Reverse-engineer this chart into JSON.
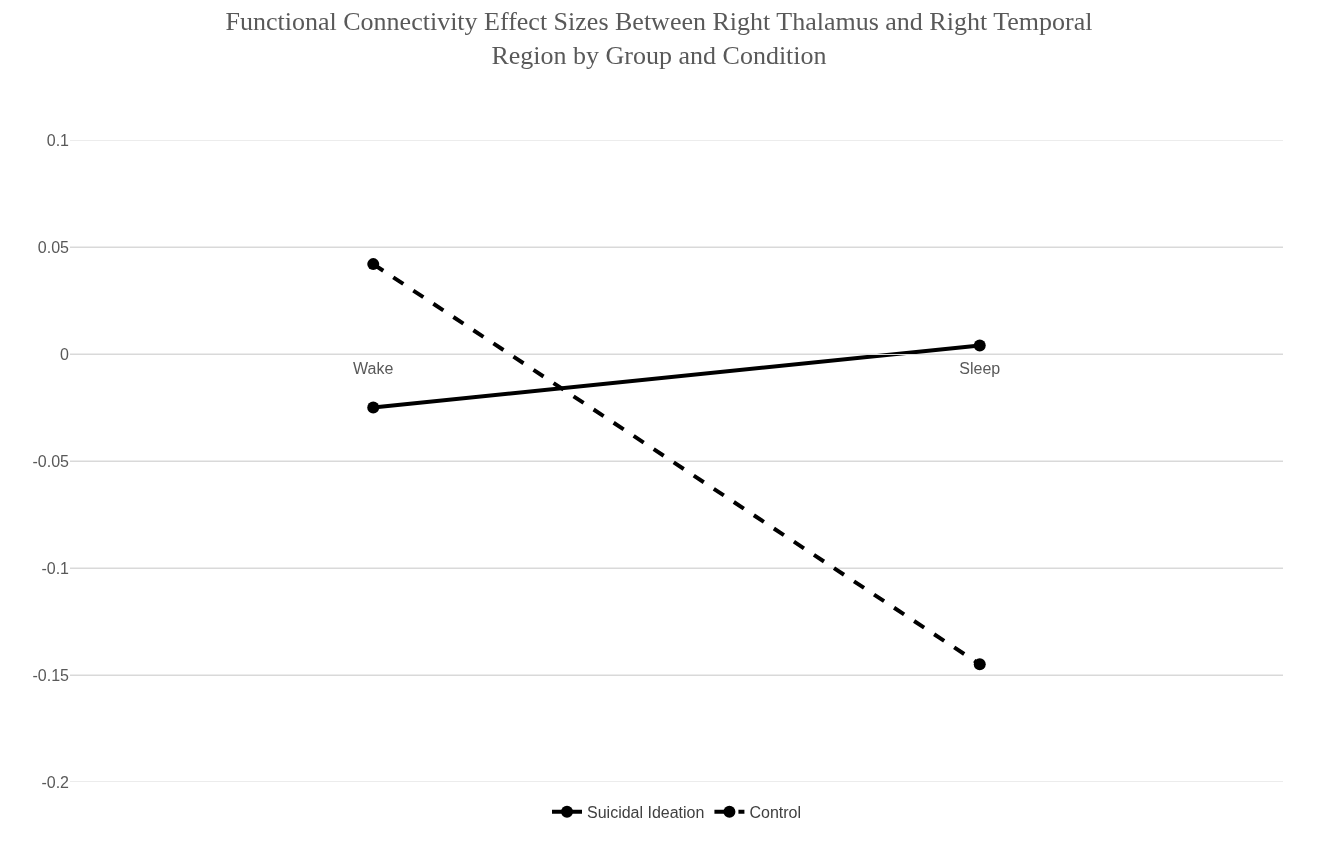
{
  "chart_data": {
    "type": "line",
    "title": "Functional Connectivity Effect Sizes Between Right Thalamus and Right Temporal Region by Group and Condition",
    "categories": [
      "Wake",
      "Sleep"
    ],
    "series": [
      {
        "name": "Suicidal Ideation",
        "color": "#000000",
        "values": [
          -0.025,
          0.004
        ],
        "line_style": "solid"
      },
      {
        "name": "Control",
        "color": "#000000",
        "values": [
          0.042,
          -0.145
        ],
        "line_style": "dashed"
      }
    ],
    "ylim": [
      -0.2,
      0.1
    ],
    "yticks": [
      -0.2,
      -0.15,
      -0.1,
      -0.05,
      0,
      0.05,
      0.1
    ],
    "grid": "y",
    "legend": "bottom",
    "marker": "circle"
  }
}
